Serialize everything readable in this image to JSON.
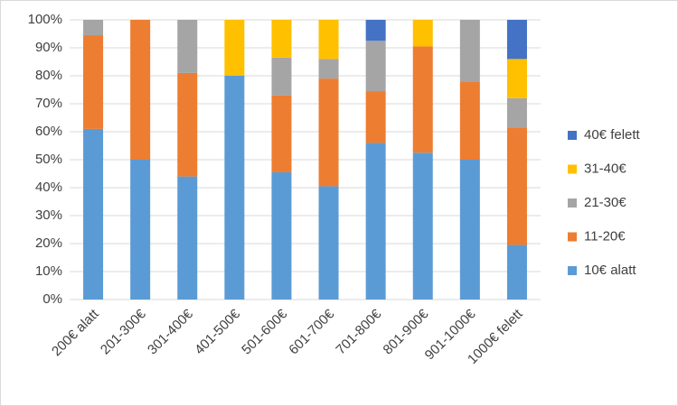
{
  "chart_data": {
    "type": "stacked_bar_percent",
    "categories": [
      "200€ alatt",
      "201-300€",
      "301-400€",
      "401-500€",
      "501-600€",
      "601-700€",
      "701-800€",
      "801-900€",
      "901-1000€",
      "1000€ felett"
    ],
    "series": [
      {
        "name": "10€ alatt",
        "color": "#5b9bd5",
        "values": [
          61,
          50,
          44,
          80,
          45.5,
          40.5,
          56,
          52.5,
          50,
          19.5
        ]
      },
      {
        "name": "11-20€",
        "color": "#ed7d31",
        "values": [
          33.5,
          50,
          37,
          0,
          27.5,
          38.5,
          18.5,
          38,
          28,
          42
        ]
      },
      {
        "name": "21-30€",
        "color": "#a5a5a5",
        "values": [
          5.5,
          0,
          19,
          0,
          13.5,
          7,
          18,
          0,
          22,
          10.5
        ]
      },
      {
        "name": "31-40€",
        "color": "#ffc000",
        "values": [
          0,
          0,
          0,
          20,
          13.5,
          14,
          0,
          9.5,
          0,
          14
        ]
      },
      {
        "name": "40€ felett",
        "color": "#4472c4",
        "values": [
          0,
          0,
          0,
          0,
          0,
          0,
          7.5,
          0,
          0,
          14
        ]
      }
    ],
    "ylim": [
      0,
      100
    ],
    "yticks": [
      {
        "value": 0,
        "label": "0%"
      },
      {
        "value": 10,
        "label": "10%"
      },
      {
        "value": 20,
        "label": "20%"
      },
      {
        "value": 30,
        "label": "30%"
      },
      {
        "value": 40,
        "label": "40%"
      },
      {
        "value": 50,
        "label": "50%"
      },
      {
        "value": 60,
        "label": "60%"
      },
      {
        "value": 70,
        "label": "70%"
      },
      {
        "value": 80,
        "label": "80%"
      },
      {
        "value": 90,
        "label": "90%"
      },
      {
        "value": 100,
        "label": "100%"
      }
    ],
    "grid": true,
    "legend": "right"
  }
}
